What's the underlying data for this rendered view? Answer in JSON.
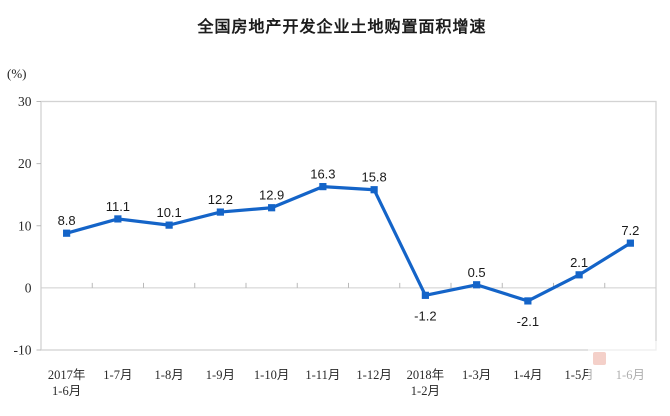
{
  "chart_data": {
    "type": "line",
    "title": "全国房地产开发企业土地购置面积增速",
    "unit_label": "(%)",
    "categories": [
      "2017年\n1-6月",
      "1-7月",
      "1-8月",
      "1-9月",
      "1-10月",
      "1-11月",
      "1-12月",
      "2018年\n1-2月",
      "1-3月",
      "1-4月",
      "1-5月",
      "1-6月"
    ],
    "values": [
      8.8,
      11.1,
      10.1,
      12.2,
      12.9,
      16.3,
      15.8,
      -1.2,
      0.5,
      -2.1,
      2.1,
      7.2
    ],
    "point_labels": [
      "8.8",
      "11.1",
      "10.1",
      "12.2",
      "12.9",
      "16.3",
      "15.8",
      "-1.2",
      "0.5",
      "-2.1",
      "2.1",
      "7.2"
    ],
    "xlabel": "",
    "ylabel": "(%)",
    "ylim": [
      -10,
      30
    ],
    "yticks": [
      30,
      20,
      10,
      0,
      -10
    ],
    "grid": "zero-line-only",
    "legend": "none",
    "marker": "square",
    "colors": {
      "line": "#1464c8",
      "marker": "#1464c8",
      "plot_border": "#d3d3d3",
      "zero_line": "#cfcfcf",
      "tick": "#b9b9b9",
      "tick_text": "#2a2a2a",
      "point_label_text": "#1a1a1a"
    }
  },
  "watermark": {
    "present": "true"
  }
}
